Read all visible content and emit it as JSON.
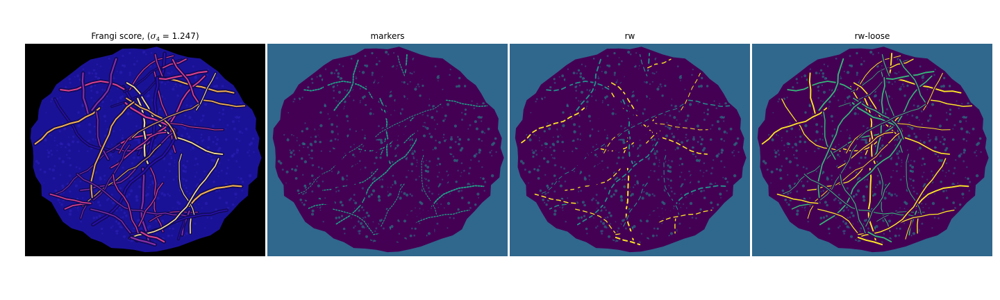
{
  "panels": [
    {
      "title_prefix": "Frangi score, (",
      "title_symbol": "σ",
      "title_subscript": "4",
      "title_suffix": " = 1.247)",
      "background": "#000000",
      "tissue": "#1a1296",
      "vessel_colors": [
        "#2a10b5",
        "#8a2fa6",
        "#e0418a",
        "#f5b34a",
        "#fce38a"
      ]
    },
    {
      "title": "markers",
      "background": "#30678d",
      "tissue": "#440154",
      "vessel_colors": [
        "#440154",
        "#1fa188",
        "#35b779",
        "#21918c",
        "#2a788e"
      ]
    },
    {
      "title": "rw",
      "background": "#30678d",
      "tissue": "#440154",
      "vessel_colors": [
        "#440154",
        "#21918c",
        "#1fa188",
        "#35b779",
        "#fde725"
      ]
    },
    {
      "title": "rw-loose",
      "background": "#30678d",
      "tissue": "#440154",
      "vessel_colors": [
        "#440154",
        "#35b779",
        "#5ec962",
        "#fde725",
        "#fde725"
      ]
    }
  ]
}
